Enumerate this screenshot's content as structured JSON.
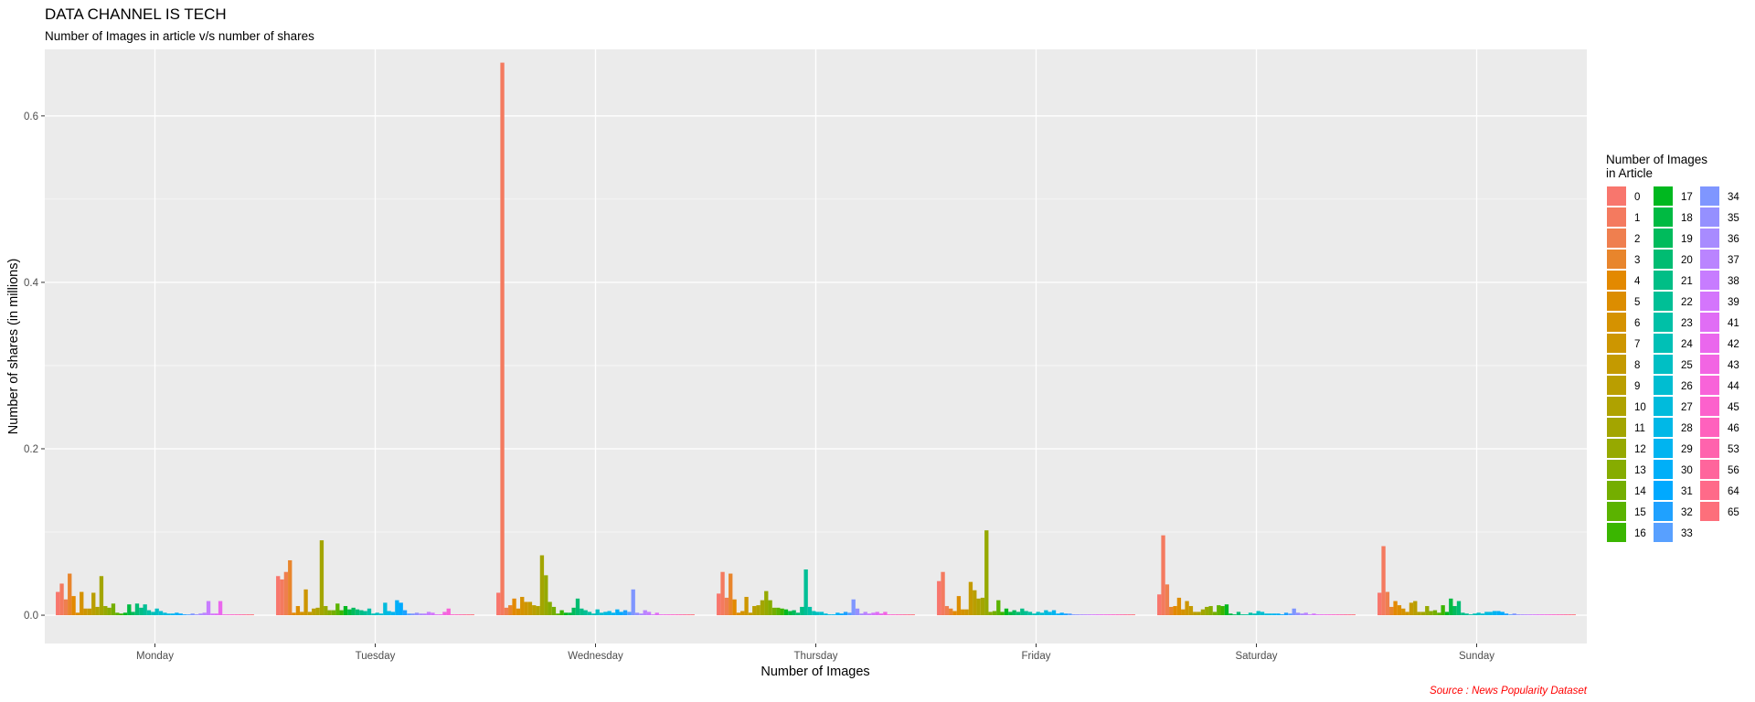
{
  "chart_data": {
    "type": "bar",
    "title": "DATA CHANNEL IS TECH",
    "subtitle": "Number of Images in article v/s number of shares",
    "xlabel": "Number of Images",
    "ylabel": "Number of shares (in millions)",
    "caption": "Source : News Popularity Dataset",
    "categories": [
      "Monday",
      "Tuesday",
      "Wednesday",
      "Thursday",
      "Friday",
      "Saturday",
      "Sunday"
    ],
    "ylim": [
      -0.034,
      0.68
    ],
    "yticks": [
      0.0,
      0.2,
      0.4,
      0.6
    ],
    "ytick_labels": [
      "0.0",
      "0.2",
      "0.4",
      "0.6"
    ],
    "grid": true,
    "legend": {
      "title": "Number of Images\n in Article",
      "placement": "right",
      "entries": [
        "0",
        "1",
        "2",
        "3",
        "4",
        "5",
        "6",
        "7",
        "8",
        "9",
        "10",
        "11",
        "12",
        "13",
        "14",
        "15",
        "16",
        "17",
        "18",
        "19",
        "20",
        "21",
        "22",
        "23",
        "24",
        "25",
        "26",
        "27",
        "28",
        "29",
        "30",
        "31",
        "32",
        "33",
        "34",
        "35",
        "36",
        "37",
        "38",
        "39",
        "41",
        "42",
        "43",
        "44",
        "45",
        "46",
        "53",
        "56",
        "64",
        "65"
      ]
    },
    "series": [
      {
        "name": "0",
        "color": "#F8766D",
        "values": [
          0.028,
          0.047,
          0.027,
          0.026,
          0.041,
          0.025,
          0.027
        ]
      },
      {
        "name": "1",
        "color": "#F47A5F",
        "values": [
          0.038,
          0.043,
          0.664,
          0.052,
          0.052,
          0.096,
          0.083
        ]
      },
      {
        "name": "2",
        "color": "#EF7F4F",
        "values": [
          0.019,
          0.052,
          0.009,
          0.021,
          0.011,
          0.037,
          0.028
        ]
      },
      {
        "name": "3",
        "color": "#E8852C",
        "values": [
          0.05,
          0.066,
          0.012,
          0.05,
          0.008,
          0.01,
          0.01
        ]
      },
      {
        "name": "4",
        "color": "#E38900",
        "values": [
          0.023,
          0.003,
          0.02,
          0.019,
          0.005,
          0.011,
          0.017
        ]
      },
      {
        "name": "5",
        "color": "#DC8D00",
        "values": [
          0.003,
          0.011,
          0.008,
          0.003,
          0.023,
          0.021,
          0.012
        ]
      },
      {
        "name": "6",
        "color": "#D59200",
        "values": [
          0.028,
          0.004,
          0.022,
          0.005,
          0.007,
          0.007,
          0.008
        ]
      },
      {
        "name": "7",
        "color": "#CD9600",
        "values": [
          0.008,
          0.031,
          0.016,
          0.022,
          0.007,
          0.017,
          0.004
        ]
      },
      {
        "name": "8",
        "color": "#C49A00",
        "values": [
          0.008,
          0.004,
          0.016,
          0.003,
          0.04,
          0.011,
          0.015
        ]
      },
      {
        "name": "9",
        "color": "#BA9E00",
        "values": [
          0.027,
          0.008,
          0.012,
          0.011,
          0.03,
          0.004,
          0.017
        ]
      },
      {
        "name": "10",
        "color": "#AFA200",
        "values": [
          0.01,
          0.009,
          0.011,
          0.012,
          0.02,
          0.004,
          0.004
        ]
      },
      {
        "name": "11",
        "color": "#A3A500",
        "values": [
          0.047,
          0.09,
          0.072,
          0.018,
          0.021,
          0.007,
          0.004
        ]
      },
      {
        "name": "12",
        "color": "#96A900",
        "values": [
          0.011,
          0.011,
          0.048,
          0.029,
          0.102,
          0.01,
          0.011
        ]
      },
      {
        "name": "13",
        "color": "#86AC00",
        "values": [
          0.009,
          0.006,
          0.016,
          0.018,
          0.004,
          0.011,
          0.005
        ]
      },
      {
        "name": "14",
        "color": "#74AE00",
        "values": [
          0.014,
          0.006,
          0.01,
          0.009,
          0.005,
          0.004,
          0.006
        ]
      },
      {
        "name": "15",
        "color": "#5BB300",
        "values": [
          0.003,
          0.014,
          0.002,
          0.009,
          0.018,
          0.012,
          0.003
        ]
      },
      {
        "name": "16",
        "color": "#3AB600",
        "values": [
          0.002,
          0.006,
          0.006,
          0.008,
          0.004,
          0.011,
          0.012
        ]
      },
      {
        "name": "17",
        "color": "#00B81F",
        "values": [
          0.003,
          0.011,
          0.003,
          0.007,
          0.008,
          0.013,
          0.004
        ]
      },
      {
        "name": "18",
        "color": "#00BA42",
        "values": [
          0.013,
          0.007,
          0.003,
          0.005,
          0.004,
          0.002,
          0.02
        ]
      },
      {
        "name": "19",
        "color": "#00BB5C",
        "values": [
          0.004,
          0.009,
          0.009,
          0.006,
          0.006,
          0.001,
          0.011
        ]
      },
      {
        "name": "20",
        "color": "#00BC72",
        "values": [
          0.014,
          0.007,
          0.02,
          0.003,
          0.004,
          0.004,
          0.017
        ]
      },
      {
        "name": "21",
        "color": "#00BE86",
        "values": [
          0.009,
          0.006,
          0.008,
          0.01,
          0.008,
          0.001,
          0.003
        ]
      },
      {
        "name": "22",
        "color": "#00BF96",
        "values": [
          0.013,
          0.005,
          0.006,
          0.055,
          0.005,
          0.001,
          0.002
        ]
      },
      {
        "name": "23",
        "color": "#00C0A7",
        "values": [
          0.006,
          0.008,
          0.004,
          0.01,
          0.004,
          0.003,
          0.001
        ]
      },
      {
        "name": "24",
        "color": "#00C0B6",
        "values": [
          0.004,
          0.002,
          0.002,
          0.005,
          0.002,
          0.002,
          0.002
        ]
      },
      {
        "name": "25",
        "color": "#00BFC4",
        "values": [
          0.008,
          0.003,
          0.007,
          0.004,
          0.004,
          0.005,
          0.003
        ]
      },
      {
        "name": "26",
        "color": "#00BDD1",
        "values": [
          0.005,
          0.002,
          0.003,
          0.004,
          0.003,
          0.004,
          0.002
        ]
      },
      {
        "name": "27",
        "color": "#00BBDC",
        "values": [
          0.003,
          0.015,
          0.004,
          0.002,
          0.006,
          0.002,
          0.004
        ]
      },
      {
        "name": "28",
        "color": "#00B8E7",
        "values": [
          0.002,
          0.005,
          0.005,
          0.001,
          0.004,
          0.002,
          0.004
        ]
      },
      {
        "name": "29",
        "color": "#00B4F0",
        "values": [
          0.002,
          0.004,
          0.003,
          0.001,
          0.006,
          0.002,
          0.005
        ]
      },
      {
        "name": "30",
        "color": "#00AFF8",
        "values": [
          0.003,
          0.018,
          0.007,
          0.003,
          0.002,
          0.002,
          0.005
        ]
      },
      {
        "name": "31",
        "color": "#00A9FF",
        "values": [
          0.002,
          0.015,
          0.004,
          0.002,
          0.003,
          0.001,
          0.004
        ]
      },
      {
        "name": "32",
        "color": "#1FA1FF",
        "values": [
          0.001,
          0.006,
          0.006,
          0.004,
          0.002,
          0.003,
          0.002
        ]
      },
      {
        "name": "33",
        "color": "#58A0FF",
        "values": [
          0.001,
          0.002,
          0.004,
          0.003,
          0.002,
          0.002,
          0.001
        ]
      },
      {
        "name": "34",
        "color": "#7F96FF",
        "values": [
          0.002,
          0.002,
          0.031,
          0.019,
          0.001,
          0.008,
          0.002
        ]
      },
      {
        "name": "35",
        "color": "#9590FF",
        "values": [
          0.001,
          0.003,
          0.003,
          0.008,
          0.001,
          0.003,
          0.001
        ]
      },
      {
        "name": "36",
        "color": "#A88BFF",
        "values": [
          0.002,
          0.002,
          0.002,
          0.002,
          0.001,
          0.002,
          0.001
        ]
      },
      {
        "name": "37",
        "color": "#BA84FF",
        "values": [
          0.003,
          0.002,
          0.006,
          0.004,
          0.001,
          0.003,
          0.001
        ]
      },
      {
        "name": "38",
        "color": "#C77CFF",
        "values": [
          0.017,
          0.004,
          0.004,
          0.002,
          0.001,
          0.001,
          0.001
        ]
      },
      {
        "name": "39",
        "color": "#D475FC",
        "values": [
          0.002,
          0.003,
          0.001,
          0.003,
          0.001,
          0.002,
          0.001
        ]
      },
      {
        "name": "41",
        "color": "#E06DF5",
        "values": [
          0.002,
          0.001,
          0.003,
          0.004,
          0.001,
          0.001,
          0.001
        ]
      },
      {
        "name": "42",
        "color": "#EA67ED",
        "values": [
          0.017,
          0.001,
          0.001,
          0.002,
          0.001,
          0.001,
          0.001
        ]
      },
      {
        "name": "43",
        "color": "#F265E3",
        "values": [
          0.001,
          0.004,
          0.001,
          0.004,
          0.001,
          0.001,
          0.001
        ]
      },
      {
        "name": "44",
        "color": "#F863D9",
        "values": [
          0.001,
          0.008,
          0.001,
          0.001,
          0.001,
          0.001,
          0.001
        ]
      },
      {
        "name": "45",
        "color": "#FC61CC",
        "values": [
          0.001,
          0.001,
          0.001,
          0.001,
          0.001,
          0.001,
          0.001
        ]
      },
      {
        "name": "46",
        "color": "#FF61BD",
        "values": [
          0.001,
          0.001,
          0.001,
          0.001,
          0.001,
          0.001,
          0.001
        ]
      },
      {
        "name": "53",
        "color": "#FF63AD",
        "values": [
          0.001,
          0.001,
          0.001,
          0.001,
          0.001,
          0.001,
          0.001
        ]
      },
      {
        "name": "56",
        "color": "#FF659C",
        "values": [
          0.001,
          0.001,
          0.001,
          0.001,
          0.001,
          0.001,
          0.001
        ]
      },
      {
        "name": "64",
        "color": "#FF6A89",
        "values": [
          0.001,
          0.001,
          0.001,
          0.001,
          0.001,
          0.001,
          0.001
        ]
      },
      {
        "name": "65",
        "color": "#FD6F7B",
        "values": [
          0.001,
          0.001,
          0.001,
          0.001,
          0.001,
          0.001,
          0.001
        ]
      }
    ]
  }
}
